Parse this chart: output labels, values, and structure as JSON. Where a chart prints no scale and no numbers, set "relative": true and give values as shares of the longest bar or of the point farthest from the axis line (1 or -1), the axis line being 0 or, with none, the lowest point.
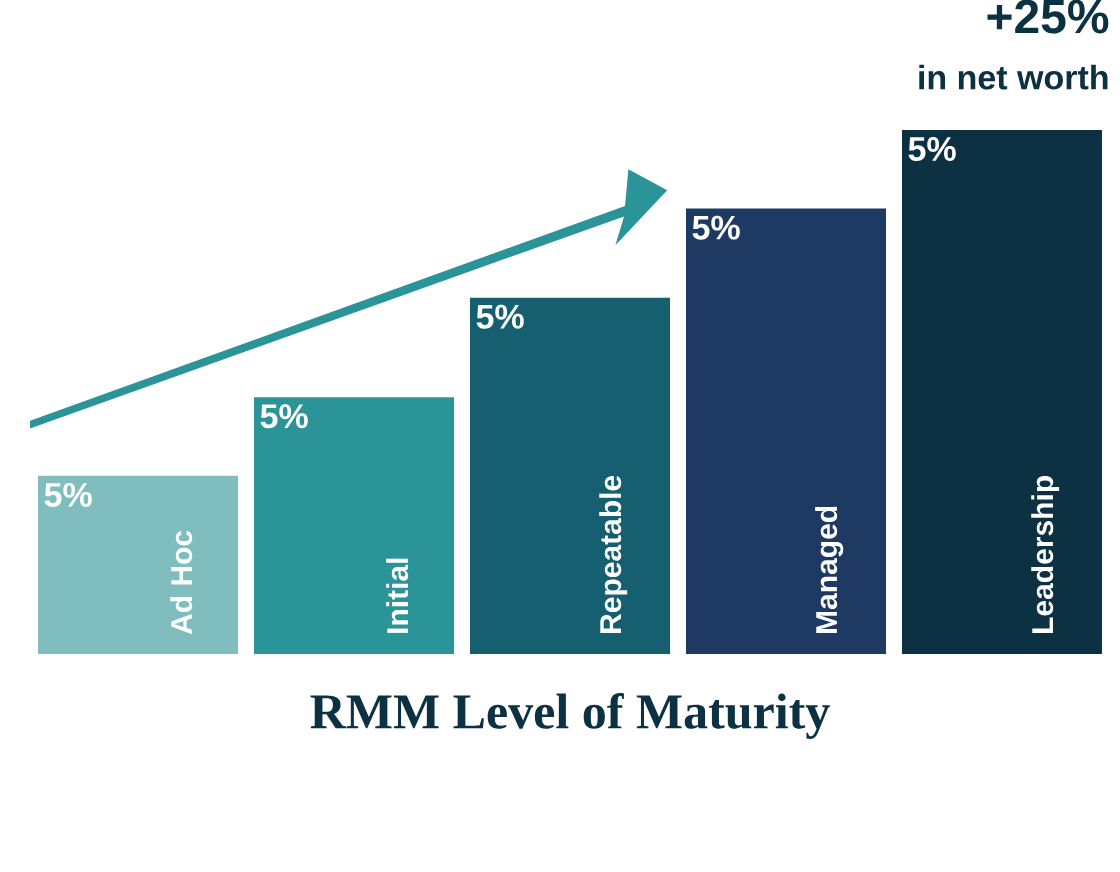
{
  "chart_data": {
    "type": "bar",
    "relative": true,
    "categories": [
      "Ad Hoc",
      "Initial",
      "Repeatable",
      "Managed",
      "Leadership"
    ],
    "values": [
      0.34,
      0.49,
      0.68,
      0.85,
      1
    ],
    "colors": [
      "#7fbdbf",
      "#2a9498",
      "#155f70",
      "#1f3a62",
      "#0c3142"
    ],
    "xlabel": "RMM Level of Maturity",
    "annotations": [
      "+25%",
      "in net worth",
      {
        "text": "5%",
        "x": "Ad Hoc",
        "y": 0.34
      },
      {
        "text": "5%",
        "x": "Initial",
        "y": 0.49
      },
      {
        "text": "5%",
        "x": "Repeatable",
        "y": 0.68
      },
      {
        "text": "5%",
        "x": "Managed",
        "y": 0.85
      },
      {
        "text": "5%",
        "x": "Leadership",
        "y": 1
      }
    ]
  }
}
